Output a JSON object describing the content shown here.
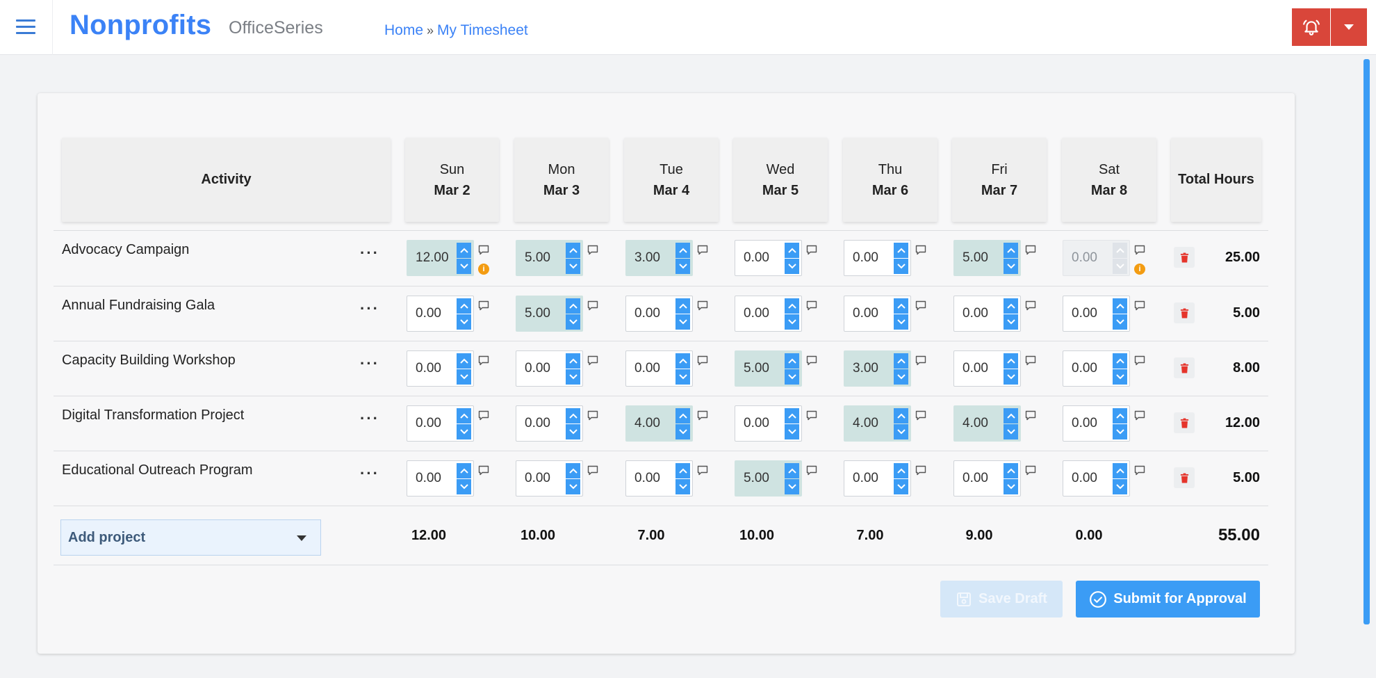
{
  "header": {
    "brand": "Nonprofits",
    "subbrand": "OfficeSeries",
    "breadcrumb": {
      "home": "Home",
      "separator": "»",
      "current": "My Timesheet"
    }
  },
  "colors": {
    "accent": "#3b9cf5",
    "brand": "#3b82f6",
    "alert": "#d9463a",
    "filled": "#cfe3e1"
  },
  "table": {
    "activity_header": "Activity",
    "total_header": "Total Hours",
    "days": [
      {
        "day": "Sun",
        "date": "Mar 2"
      },
      {
        "day": "Mon",
        "date": "Mar 3"
      },
      {
        "day": "Tue",
        "date": "Mar 4"
      },
      {
        "day": "Wed",
        "date": "Mar 5"
      },
      {
        "day": "Thu",
        "date": "Mar 6"
      },
      {
        "day": "Fri",
        "date": "Mar 7"
      },
      {
        "day": "Sat",
        "date": "Mar 8"
      }
    ],
    "rows": [
      {
        "activity": "Advocacy Campaign",
        "hours": [
          "12.00",
          "5.00",
          "3.00",
          "0.00",
          "0.00",
          "5.00",
          "0.00"
        ],
        "total": "25.00"
      },
      {
        "activity": "Annual Fundraising Gala",
        "hours": [
          "0.00",
          "5.00",
          "0.00",
          "0.00",
          "0.00",
          "0.00",
          "0.00"
        ],
        "total": "5.00"
      },
      {
        "activity": "Capacity Building Workshop",
        "hours": [
          "0.00",
          "0.00",
          "0.00",
          "5.00",
          "3.00",
          "0.00",
          "0.00"
        ],
        "total": "8.00"
      },
      {
        "activity": "Digital Transformation Project",
        "hours": [
          "0.00",
          "0.00",
          "4.00",
          "0.00",
          "4.00",
          "4.00",
          "0.00"
        ],
        "total": "12.00"
      },
      {
        "activity": "Educational Outreach Program",
        "hours": [
          "0.00",
          "0.00",
          "0.00",
          "5.00",
          "0.00",
          "0.00",
          "0.00"
        ],
        "total": "5.00"
      }
    ],
    "more_label": "···",
    "add_project_label": "Add project",
    "column_totals": [
      "12.00",
      "10.00",
      "7.00",
      "10.00",
      "7.00",
      "9.00",
      "0.00"
    ],
    "grand_total": "55.00"
  },
  "actions": {
    "save_draft": "Save Draft",
    "submit": "Submit for Approval"
  }
}
